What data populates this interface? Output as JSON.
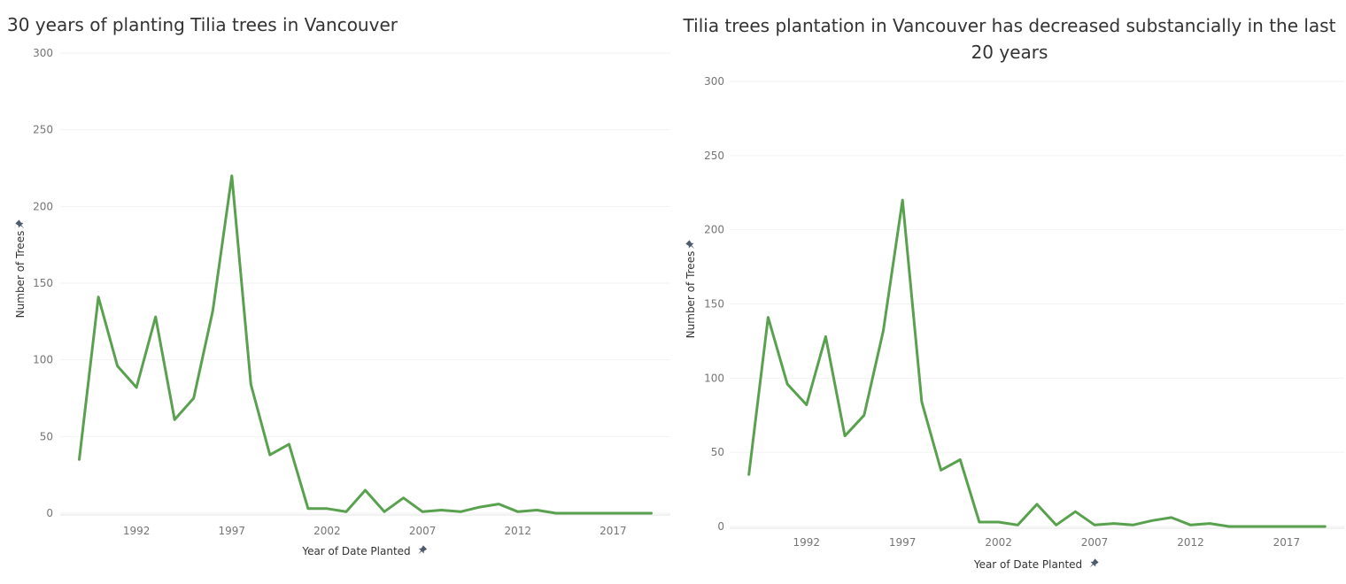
{
  "colors": {
    "series": "#59a14f"
  },
  "chart_data": [
    {
      "type": "line",
      "title": "30 years of planting Tilia trees in Vancouver",
      "xlabel": "Year of Date Planted",
      "ylabel": "Number of Trees",
      "xlim": [
        1988,
        2020
      ],
      "ylim": [
        0,
        300
      ],
      "xticks": [
        1992,
        1997,
        2002,
        2007,
        2012,
        2017
      ],
      "yticks": [
        0,
        50,
        100,
        150,
        200,
        250,
        300
      ],
      "grid": true,
      "series": [
        {
          "x": [
            1989,
            1990,
            1991,
            1992,
            1993,
            1994,
            1995,
            1996,
            1997,
            1998,
            1999,
            2000,
            2001,
            2002,
            2003,
            2004,
            2005,
            2006,
            2007,
            2008,
            2009,
            2010,
            2011,
            2012,
            2013,
            2014,
            2015,
            2016,
            2017,
            2018,
            2019
          ],
          "values": [
            35,
            141,
            96,
            82,
            128,
            61,
            75,
            132,
            220,
            84,
            38,
            45,
            3,
            3,
            1,
            15,
            1,
            10,
            1,
            2,
            1,
            4,
            6,
            1,
            2,
            0,
            0,
            0,
            0,
            0,
            0
          ]
        }
      ]
    },
    {
      "type": "line",
      "title": "Tilia trees plantation in Vancouver has decreased substancially in the last 20 years",
      "xlabel": "Year of Date Planted",
      "ylabel": "Number of Trees",
      "xlim": [
        1988,
        2020
      ],
      "ylim": [
        0,
        300
      ],
      "xticks": [
        1992,
        1997,
        2002,
        2007,
        2012,
        2017
      ],
      "yticks": [
        0,
        50,
        100,
        150,
        200,
        250,
        300
      ],
      "grid": true,
      "series": [
        {
          "x": [
            1989,
            1990,
            1991,
            1992,
            1993,
            1994,
            1995,
            1996,
            1997,
            1998,
            1999,
            2000,
            2001,
            2002,
            2003,
            2004,
            2005,
            2006,
            2007,
            2008,
            2009,
            2010,
            2011,
            2012,
            2013,
            2014,
            2015,
            2016,
            2017,
            2018,
            2019
          ],
          "values": [
            35,
            141,
            96,
            82,
            128,
            61,
            75,
            132,
            220,
            84,
            38,
            45,
            3,
            3,
            1,
            15,
            1,
            10,
            1,
            2,
            1,
            4,
            6,
            1,
            2,
            0,
            0,
            0,
            0,
            0,
            0
          ]
        }
      ]
    }
  ]
}
